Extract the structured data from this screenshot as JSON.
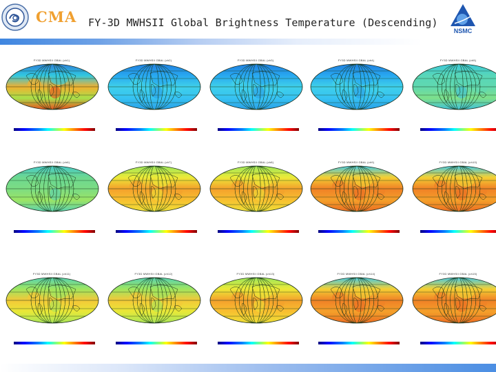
{
  "header": {
    "cma_label": "CMA",
    "title": "FY-3D MWHSII Global Brightness Temperature (Descending)",
    "nsmc_label": "NSMC"
  },
  "colors": {
    "cma_orange": "#f0a030",
    "nsmc_blue": "#1e56b0",
    "bar_blue": "#3f86e0"
  },
  "panels": [
    {
      "row": 0,
      "col": 0,
      "title": "FY3D MWHSII GBAL (ch1)",
      "scheme": "mixed"
    },
    {
      "row": 0,
      "col": 1,
      "title": "FY3D MWHSII GBAL (ch2)",
      "scheme": "blue"
    },
    {
      "row": 0,
      "col": 2,
      "title": "FY3D MWHSII GBAL (ch3)",
      "scheme": "blue"
    },
    {
      "row": 0,
      "col": 3,
      "title": "FY3D MWHSII GBAL (ch4)",
      "scheme": "blue"
    },
    {
      "row": 0,
      "col": 4,
      "title": "FY3D MWHSII GBAL (ch5)",
      "scheme": "cyan-green"
    },
    {
      "row": 1,
      "col": 0,
      "title": "FY3D MWHSII GBAL (ch6)",
      "scheme": "green"
    },
    {
      "row": 1,
      "col": 1,
      "title": "FY3D MWHSII GBAL (ch7)",
      "scheme": "yellow-orange"
    },
    {
      "row": 1,
      "col": 2,
      "title": "FY3D MWHSII GBAL (ch8)",
      "scheme": "yellow-orange"
    },
    {
      "row": 1,
      "col": 3,
      "title": "FY3D MWHSII GBAL (ch9)",
      "scheme": "orange"
    },
    {
      "row": 1,
      "col": 4,
      "title": "FY3D MWHSII GBAL (ch10)",
      "scheme": "orange"
    },
    {
      "row": 2,
      "col": 0,
      "title": "FY3D MWHSII GBAL (ch11)",
      "scheme": "green-yellow"
    },
    {
      "row": 2,
      "col": 1,
      "title": "FY3D MWHSII GBAL (ch12)",
      "scheme": "green-yellow"
    },
    {
      "row": 2,
      "col": 2,
      "title": "FY3D MWHSII GBAL (ch13)",
      "scheme": "yellow-orange"
    },
    {
      "row": 2,
      "col": 3,
      "title": "FY3D MWHSII GBAL (ch14)",
      "scheme": "orange"
    },
    {
      "row": 2,
      "col": 4,
      "title": "FY3D MWHSII GBAL (ch15)",
      "scheme": "orange"
    }
  ],
  "colorbar_ticks": [
    "",
    "",
    "",
    "",
    "",
    "",
    "",
    "",
    ""
  ]
}
